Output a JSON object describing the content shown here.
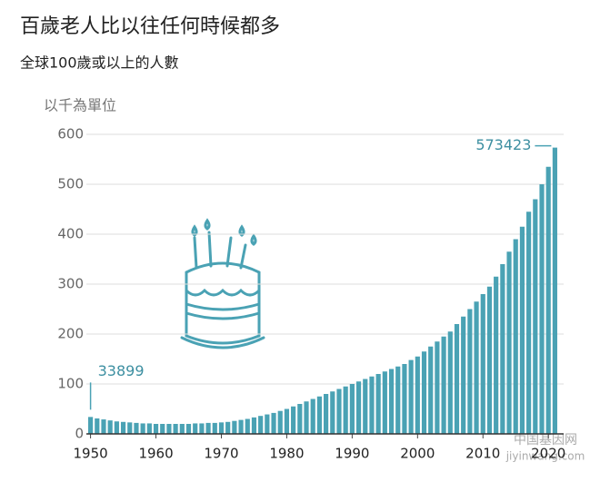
{
  "chart_data": {
    "type": "bar",
    "title": "百歲老人比以往任何時候都多",
    "subtitle": "全球100歲或以上的人數",
    "y_axis_label": "以千為單位",
    "x": [
      1950,
      1951,
      1952,
      1953,
      1954,
      1955,
      1956,
      1957,
      1958,
      1959,
      1960,
      1961,
      1962,
      1963,
      1964,
      1965,
      1966,
      1967,
      1968,
      1969,
      1970,
      1971,
      1972,
      1973,
      1974,
      1975,
      1976,
      1977,
      1978,
      1979,
      1980,
      1981,
      1982,
      1983,
      1984,
      1985,
      1986,
      1987,
      1988,
      1989,
      1990,
      1991,
      1992,
      1993,
      1994,
      1995,
      1996,
      1997,
      1998,
      1999,
      2000,
      2001,
      2002,
      2003,
      2004,
      2005,
      2006,
      2007,
      2008,
      2009,
      2010,
      2011,
      2012,
      2013,
      2014,
      2015,
      2016,
      2017,
      2018,
      2019,
      2020,
      2021
    ],
    "values": [
      33.899,
      31,
      29,
      27,
      25,
      24,
      23,
      22,
      21,
      21,
      20,
      20,
      20,
      20,
      20,
      20,
      21,
      21,
      22,
      22,
      23,
      24,
      26,
      28,
      30,
      33,
      36,
      39,
      42,
      46,
      50,
      55,
      60,
      65,
      70,
      75,
      80,
      85,
      90,
      95,
      100,
      105,
      110,
      115,
      120,
      125,
      130,
      135,
      140,
      148,
      155,
      165,
      175,
      185,
      195,
      205,
      220,
      235,
      250,
      265,
      280,
      295,
      315,
      340,
      365,
      390,
      415,
      445,
      470,
      500,
      535,
      573.423
    ],
    "value_labels": [
      "33899",
      null,
      null,
      null,
      null,
      null,
      null,
      null,
      null,
      null,
      null,
      null,
      null,
      null,
      null,
      null,
      null,
      null,
      null,
      null,
      null,
      null,
      null,
      null,
      null,
      null,
      null,
      null,
      null,
      null,
      null,
      null,
      null,
      null,
      null,
      null,
      null,
      null,
      null,
      null,
      null,
      null,
      null,
      null,
      null,
      null,
      null,
      null,
      null,
      null,
      null,
      null,
      null,
      null,
      null,
      null,
      null,
      null,
      null,
      null,
      null,
      null,
      null,
      null,
      null,
      null,
      null,
      null,
      null,
      null,
      null,
      "573423"
    ],
    "color": "#4aa2b4",
    "xlim": [
      1949.5,
      2021.5
    ],
    "xticks": [
      1950,
      1960,
      1970,
      1980,
      1990,
      2000,
      2010,
      2020
    ],
    "ylim": [
      0,
      600
    ],
    "yticks": [
      0,
      100,
      200,
      300,
      400,
      500,
      600
    ],
    "grid": true,
    "watermark": [
      "中国基因网",
      "jiyinwang.com"
    ]
  }
}
